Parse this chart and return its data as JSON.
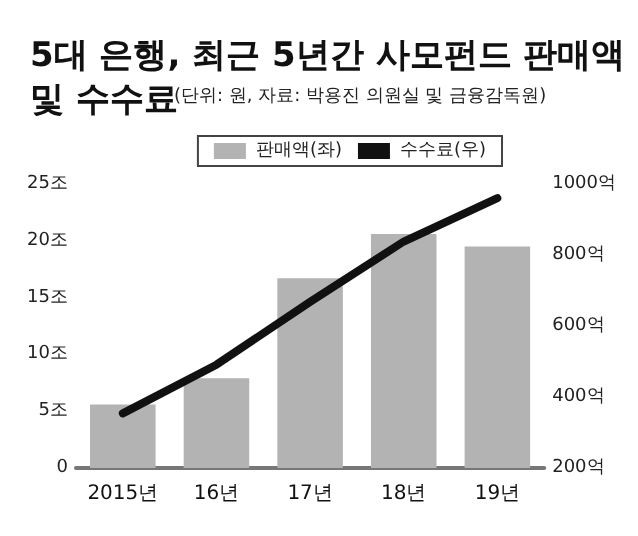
{
  "chart_data": {
    "type": "bar",
    "title": "5대 은행, 최근 5년간 사모펀드 판매액 및 수수료",
    "subtitle": "(단위: 원, 자료: 박용진 의원실 및 금융감독원)",
    "categories": [
      "2015년",
      "16년",
      "17년",
      "18년",
      "19년"
    ],
    "series": [
      {
        "name": "판매액(좌)",
        "color": "#b3b3b3",
        "values": [
          5.6,
          7.9,
          16.7,
          20.6,
          19.5
        ]
      },
      {
        "name": "수수료(우)",
        "type": "line",
        "axis": "y2",
        "color": "#111111",
        "values": [
          354,
          491,
          668,
          838,
          960
        ]
      }
    ],
    "ylim": [
      0,
      25
    ],
    "yticks": [
      0,
      {
        "value": 5,
        "label": "5조"
      },
      {
        "value": 10,
        "label": "10조"
      },
      {
        "value": 15,
        "label": "15조"
      },
      {
        "value": 20,
        "label": "20조"
      },
      {
        "value": 25,
        "label": "25조"
      }
    ],
    "y2lim": [
      200,
      1000
    ],
    "y2ticks": [
      {
        "value": 200,
        "label": "200억"
      },
      {
        "value": 400,
        "label": "400억"
      },
      {
        "value": 600,
        "label": "600억"
      },
      {
        "value": 800,
        "label": "800억"
      },
      {
        "value": 1000,
        "label": "1000억"
      }
    ],
    "legend": "top right",
    "marker": "none",
    "line_style": "solid",
    "grid": false
  }
}
